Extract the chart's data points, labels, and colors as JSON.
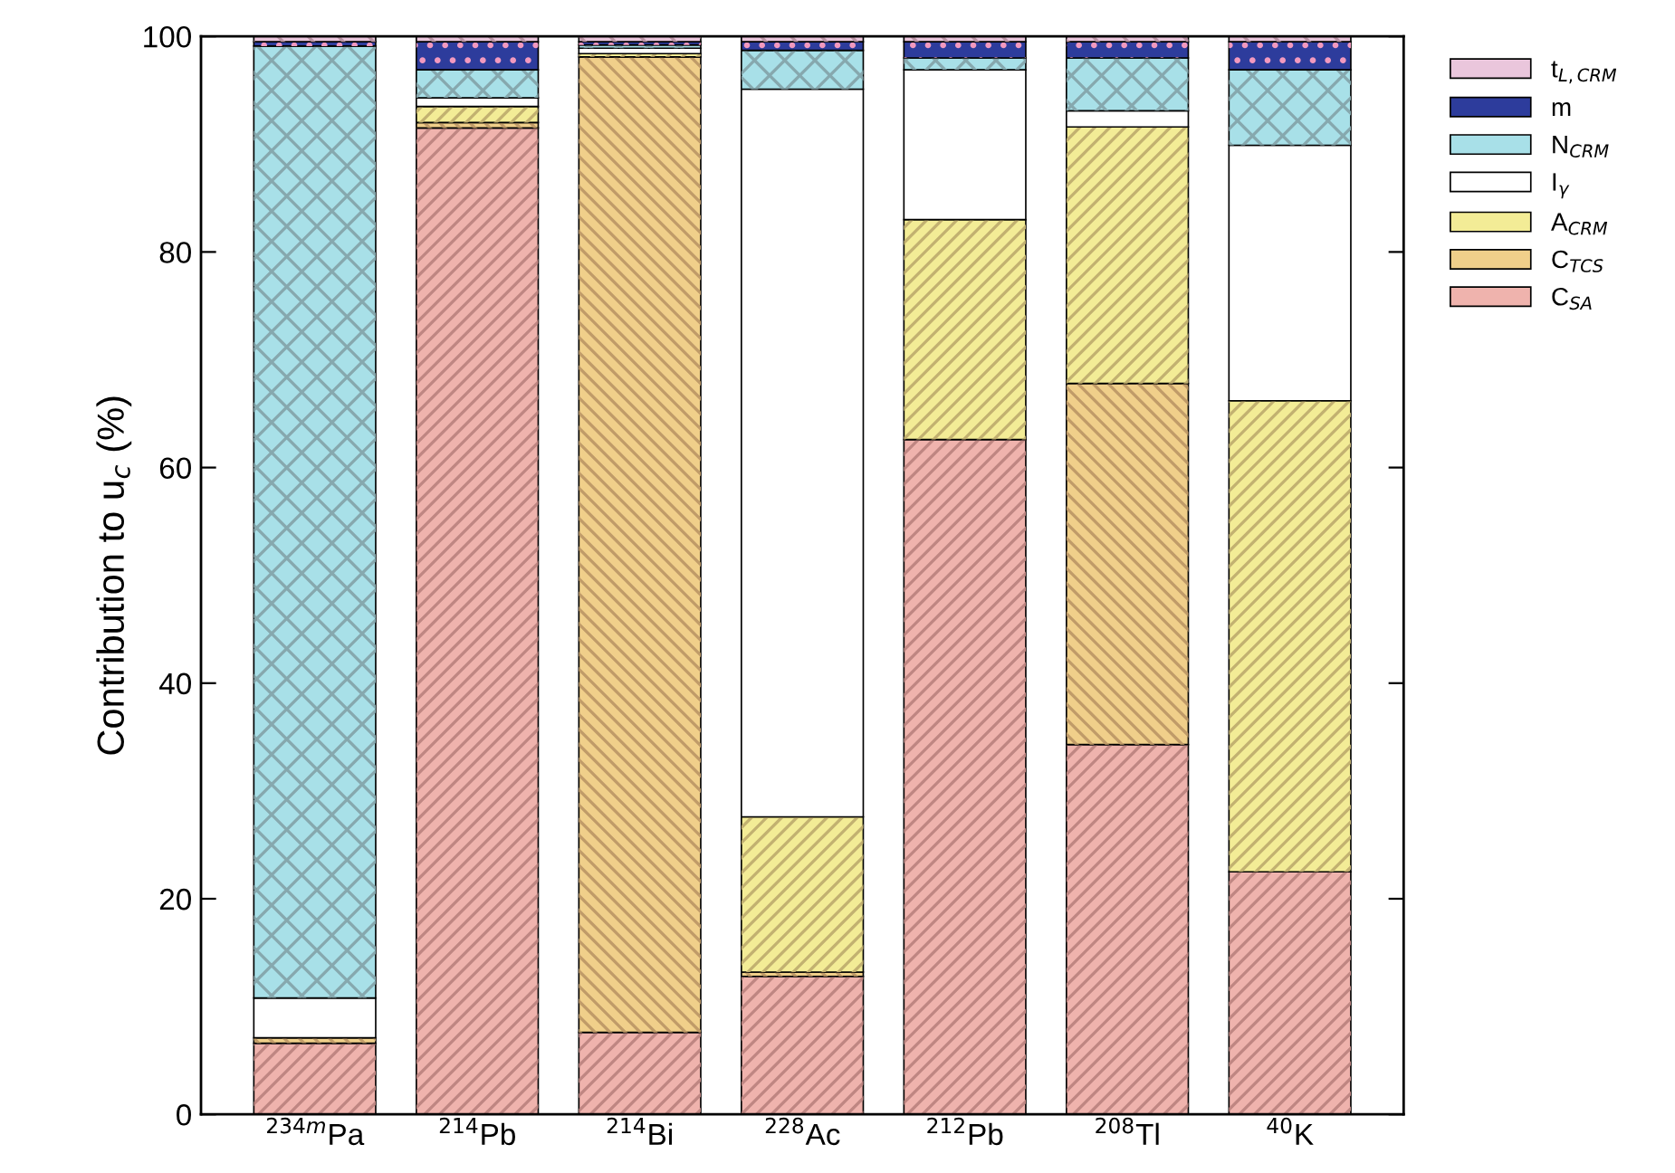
{
  "chart_data": {
    "type": "bar",
    "stacked": true,
    "ylabel": "Contribution to u$_{c}$ (%)",
    "categories": [
      "$^{234m}$Pa",
      "$^{214}$Pb",
      "$^{214}$Bi",
      "$^{228}$Ac",
      "$^{212}$Pb",
      "$^{208}$Tl",
      "$^{40}$K"
    ],
    "series": [
      {
        "name": "C$_{SA}$",
        "color": "#efb3ad",
        "values": [
          6.6,
          91.5,
          7.6,
          12.8,
          62.6,
          34.3,
          22.5
        ]
      },
      {
        "name": "C$_{TCS}$",
        "color": "#f0cf8a",
        "values": [
          0.5,
          0.5,
          90.5,
          0.4,
          null,
          33.5,
          null
        ]
      },
      {
        "name": "A$_{CRM}$",
        "color": "#f3ec96",
        "values": [
          null,
          1.5,
          0.3,
          14.4,
          20.4,
          23.8,
          43.7
        ]
      },
      {
        "name": "I$_{γ}$",
        "color": "#ffffff",
        "values": [
          3.7,
          0.8,
          0.5,
          67.5,
          13.9,
          1.5,
          23.7
        ]
      },
      {
        "name": "N$_{CRM}$",
        "color": "#a8e0e8",
        "values": [
          88.3,
          2.6,
          0.3,
          3.6,
          1.1,
          4.9,
          7.0
        ]
      },
      {
        "name": "m",
        "color": "#2d3c9c",
        "values": [
          0.4,
          2.6,
          0.3,
          0.8,
          1.5,
          1.5,
          2.6
        ]
      },
      {
        "name": "t$_{L,CRM}$",
        "color": "#eac6dc",
        "values": [
          0.5,
          0.5,
          0.5,
          0.5,
          0.5,
          0.5,
          0.5
        ]
      }
    ],
    "ylim": [
      0,
      100
    ],
    "yticks": [
      0,
      20,
      40,
      60,
      80,
      100
    ],
    "grid": false,
    "legend": "top right"
  }
}
